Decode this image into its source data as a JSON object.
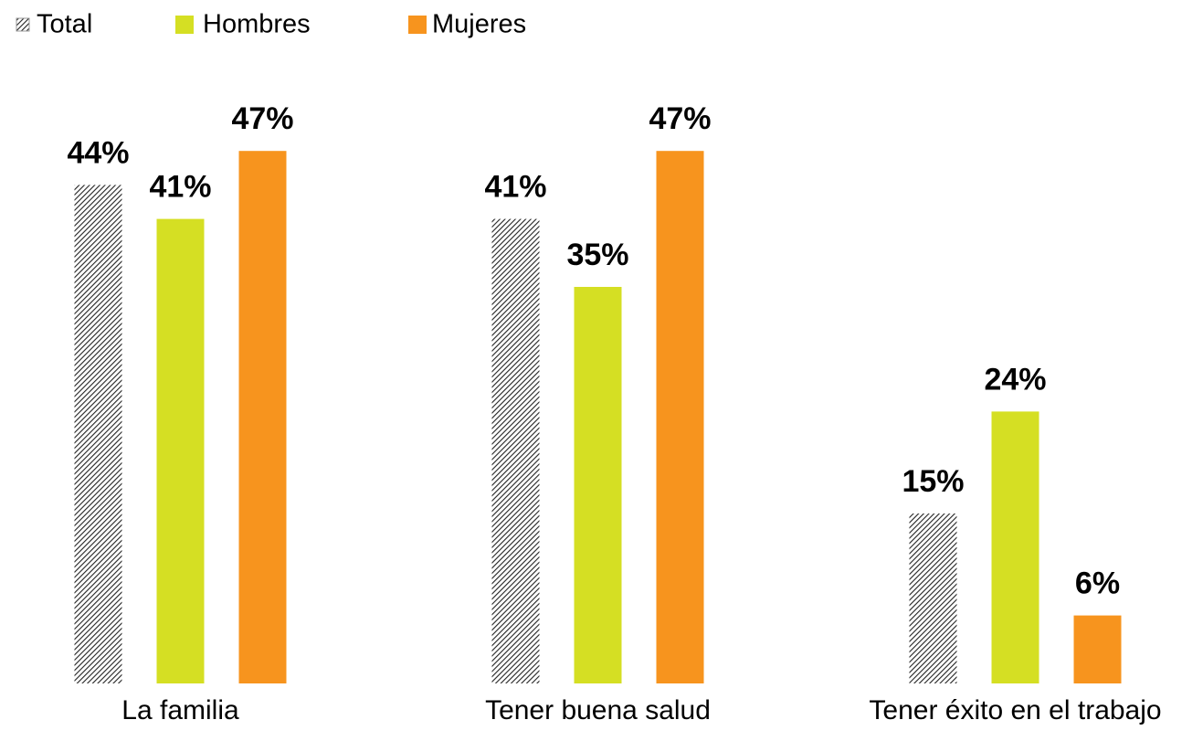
{
  "chart_data": {
    "type": "bar",
    "categories": [
      "La familia",
      "Tener buena salud",
      "Tener éxito en el trabajo"
    ],
    "series": [
      {
        "name": "Total",
        "color": "#222222",
        "hatch": true,
        "values": [
          44,
          41,
          15
        ],
        "value_labels": [
          "44%",
          "41%",
          "15%"
        ]
      },
      {
        "name": "Hombres",
        "color": "#d5df23",
        "values": [
          41,
          35,
          24
        ],
        "value_labels": [
          "41%",
          "35%",
          "24%"
        ]
      },
      {
        "name": "Mujeres",
        "color": "#f7941e",
        "values": [
          47,
          47,
          6
        ],
        "value_labels": [
          "47%",
          "47%",
          "6%"
        ]
      }
    ]
  }
}
